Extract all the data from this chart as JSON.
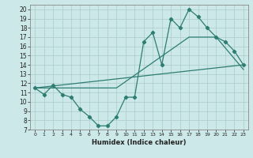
{
  "xlabel": "Humidex (Indice chaleur)",
  "bg_color": "#cce8e8",
  "line_color": "#2e7d72",
  "grid_color": "#aacccc",
  "xlim": [
    -0.5,
    23.5
  ],
  "ylim": [
    7,
    20.5
  ],
  "xticks": [
    0,
    1,
    2,
    3,
    4,
    5,
    6,
    7,
    8,
    9,
    10,
    11,
    12,
    13,
    14,
    15,
    16,
    17,
    18,
    19,
    20,
    21,
    22,
    23
  ],
  "yticks": [
    7,
    8,
    9,
    10,
    11,
    12,
    13,
    14,
    15,
    16,
    17,
    18,
    19,
    20
  ],
  "line1_x": [
    0,
    1,
    2,
    3,
    4,
    5,
    6,
    7,
    8,
    9,
    10,
    11,
    12,
    13,
    14,
    15,
    16,
    17,
    18,
    19,
    20,
    21,
    22,
    23
  ],
  "line1_y": [
    11.5,
    10.8,
    11.8,
    10.8,
    10.5,
    9.2,
    8.4,
    7.4,
    7.4,
    8.4,
    10.5,
    10.5,
    16.5,
    17.5,
    14.0,
    19.0,
    18.0,
    20.0,
    19.2,
    18.0,
    17.0,
    16.5,
    15.5,
    14.0
  ],
  "line2_x": [
    0,
    23
  ],
  "line2_y": [
    11.5,
    14.0
  ],
  "line3_x": [
    0,
    9,
    17,
    20,
    23
  ],
  "line3_y": [
    11.5,
    11.5,
    17.0,
    17.0,
    13.5
  ]
}
